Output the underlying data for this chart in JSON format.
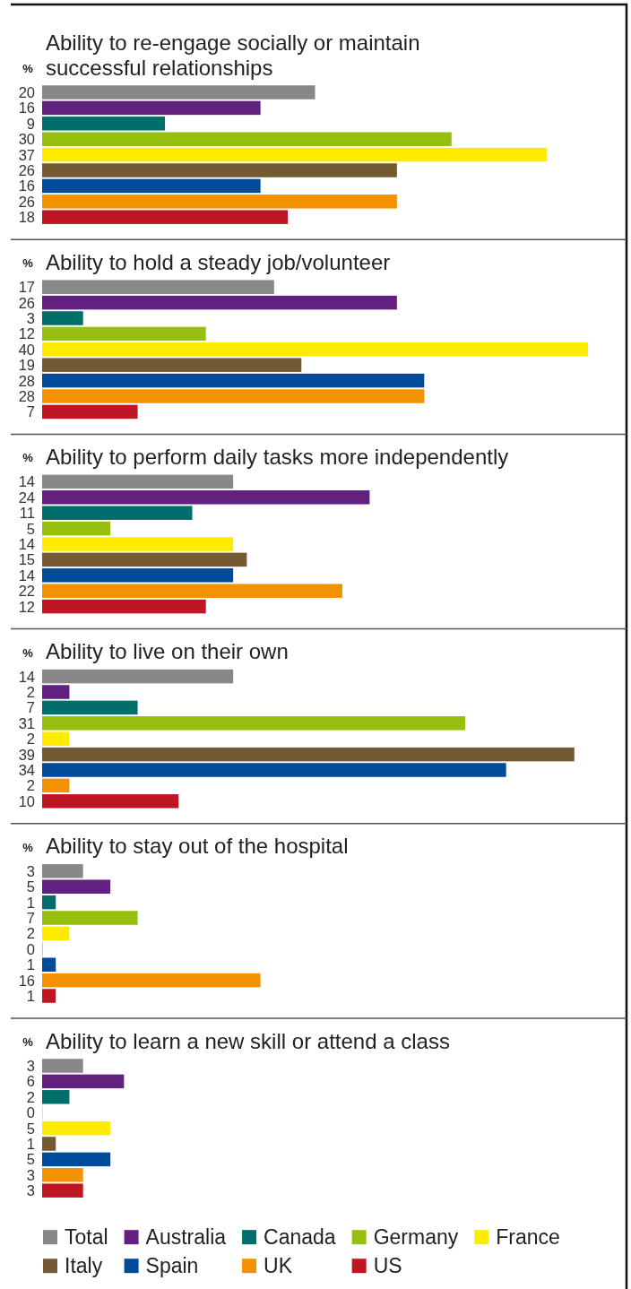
{
  "chart_data": [
    {
      "type": "bar",
      "orientation": "horizontal",
      "title": "Ability to re-engage socially or maintain\nsuccessful relationships",
      "ylabel": "%",
      "categories": [
        null
      ],
      "data_labels": true,
      "series": [
        {
          "color": "#888888",
          "values": [
            20
          ]
        },
        {
          "color": "#62217f",
          "values": [
            16
          ]
        },
        {
          "color": "#006e6a",
          "values": [
            9
          ]
        },
        {
          "color": "#97bf0d",
          "values": [
            30
          ]
        },
        {
          "color": "#ffeb00",
          "values": [
            37
          ]
        },
        {
          "color": "#735a32",
          "values": [
            26
          ]
        },
        {
          "color": "#004a9a",
          "values": [
            16
          ]
        },
        {
          "color": "#f39200",
          "values": [
            26
          ]
        },
        {
          "color": "#be1622",
          "values": [
            18
          ]
        }
      ]
    },
    {
      "type": "bar",
      "orientation": "horizontal",
      "title": "Ability to hold a steady job/volunteer",
      "ylabel": "%",
      "categories": [
        null
      ],
      "data_labels": true,
      "series": [
        {
          "color": "#888888",
          "values": [
            17
          ]
        },
        {
          "color": "#62217f",
          "values": [
            26
          ]
        },
        {
          "color": "#006e6a",
          "values": [
            3
          ]
        },
        {
          "color": "#97bf0d",
          "values": [
            12
          ]
        },
        {
          "color": "#ffeb00",
          "values": [
            40
          ]
        },
        {
          "color": "#735a32",
          "values": [
            19
          ]
        },
        {
          "color": "#004a9a",
          "values": [
            28
          ]
        },
        {
          "color": "#f39200",
          "values": [
            28
          ]
        },
        {
          "color": "#be1622",
          "values": [
            7
          ]
        }
      ]
    },
    {
      "type": "bar",
      "orientation": "horizontal",
      "title": "Ability to perform daily tasks more independently",
      "ylabel": "%",
      "categories": [
        null
      ],
      "data_labels": true,
      "series": [
        {
          "color": "#888888",
          "values": [
            14
          ]
        },
        {
          "color": "#62217f",
          "values": [
            24
          ]
        },
        {
          "color": "#006e6a",
          "values": [
            11
          ]
        },
        {
          "color": "#97bf0d",
          "values": [
            5
          ]
        },
        {
          "color": "#ffeb00",
          "values": [
            14
          ]
        },
        {
          "color": "#735a32",
          "values": [
            15
          ]
        },
        {
          "color": "#004a9a",
          "values": [
            14
          ]
        },
        {
          "color": "#f39200",
          "values": [
            22
          ]
        },
        {
          "color": "#be1622",
          "values": [
            12
          ]
        }
      ]
    },
    {
      "type": "bar",
      "orientation": "horizontal",
      "title": "Ability to live on their own",
      "ylabel": "%",
      "categories": [
        null
      ],
      "data_labels": true,
      "series": [
        {
          "color": "#888888",
          "values": [
            14
          ]
        },
        {
          "color": "#62217f",
          "values": [
            2
          ]
        },
        {
          "color": "#006e6a",
          "values": [
            7
          ]
        },
        {
          "color": "#97bf0d",
          "values": [
            31
          ]
        },
        {
          "color": "#ffeb00",
          "values": [
            2
          ]
        },
        {
          "color": "#735a32",
          "values": [
            39
          ]
        },
        {
          "color": "#004a9a",
          "values": [
            34
          ]
        },
        {
          "color": "#f39200",
          "values": [
            2
          ]
        },
        {
          "color": "#be1622",
          "values": [
            10
          ]
        }
      ]
    },
    {
      "type": "bar",
      "orientation": "horizontal",
      "title": "Ability to stay out of the hospital",
      "ylabel": "%",
      "categories": [
        null
      ],
      "data_labels": true,
      "series": [
        {
          "color": "#888888",
          "values": [
            3
          ]
        },
        {
          "color": "#62217f",
          "values": [
            5
          ]
        },
        {
          "color": "#006e6a",
          "values": [
            1
          ]
        },
        {
          "color": "#97bf0d",
          "values": [
            7
          ]
        },
        {
          "color": "#ffeb00",
          "values": [
            2
          ]
        },
        {
          "color": "#735a32",
          "values": [
            0
          ]
        },
        {
          "color": "#004a9a",
          "values": [
            1
          ]
        },
        {
          "color": "#f39200",
          "values": [
            16
          ]
        },
        {
          "color": "#be1622",
          "values": [
            1
          ]
        }
      ]
    },
    {
      "type": "bar",
      "orientation": "horizontal",
      "title": "Ability to learn a new skill or attend a class",
      "ylabel": "%",
      "categories": [
        null
      ],
      "data_labels": true,
      "legend": "bottom",
      "series": [
        {
          "name": "Total",
          "color": "#888888",
          "values": [
            3
          ]
        },
        {
          "name": "Australia",
          "color": "#62217f",
          "values": [
            6
          ]
        },
        {
          "name": "Canada",
          "color": "#006e6a",
          "values": [
            2
          ]
        },
        {
          "name": "Germany",
          "color": "#97bf0d",
          "values": [
            0
          ]
        },
        {
          "name": "France",
          "color": "#ffeb00",
          "values": [
            5
          ]
        },
        {
          "name": "Italy",
          "color": "#735a32",
          "values": [
            1
          ]
        },
        {
          "name": "Spain",
          "color": "#004a9a",
          "values": [
            5
          ]
        },
        {
          "name": "UK",
          "color": "#f39200",
          "values": [
            3
          ]
        },
        {
          "name": "US",
          "color": "#be1622",
          "values": [
            3
          ]
        }
      ]
    }
  ]
}
